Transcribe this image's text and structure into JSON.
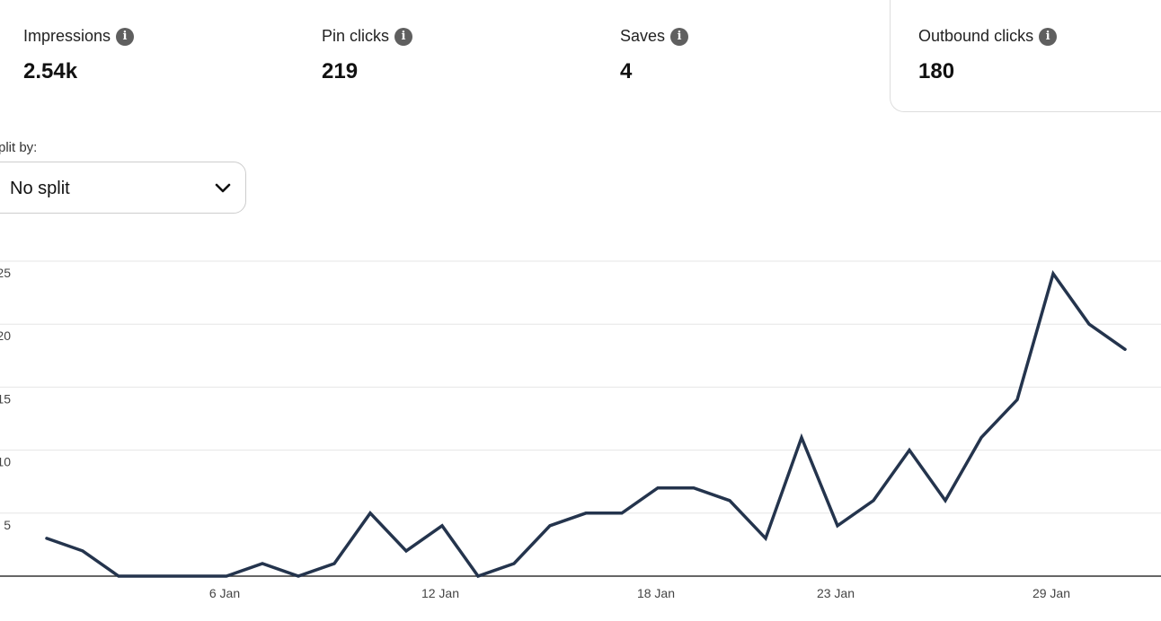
{
  "metrics": [
    {
      "label": "Impressions",
      "value": "2.54k",
      "info_icon": "info-icon"
    },
    {
      "label": "Pin clicks",
      "value": "219",
      "info_icon": "info-icon"
    },
    {
      "label": "Saves",
      "value": "4",
      "info_icon": "info-icon"
    },
    {
      "label": "Outbound clicks",
      "value": "180",
      "info_icon": "info-icon",
      "selected": true
    }
  ],
  "split": {
    "label": "plit by:",
    "selected": "No split",
    "icon": "chevron-down-icon"
  },
  "colors": {
    "line": "#24344d",
    "grid": "#e6e6e6",
    "axis": "#333333",
    "info_icon_bg": "#5f5f5f",
    "card_border": "#dddddd"
  },
  "chart_data": {
    "type": "line",
    "title": "",
    "xlabel": "",
    "ylabel": "",
    "ylim": [
      0,
      25
    ],
    "yticks": [
      0,
      5,
      10,
      15,
      20,
      25
    ],
    "ytick_labels": [
      "",
      "5",
      "10",
      "15",
      "20",
      "25"
    ],
    "xtick_labels": [
      "6 Jan",
      "12 Jan",
      "18 Jan",
      "23 Jan",
      "29 Jan"
    ],
    "grid": true,
    "legend": "none",
    "x": [
      "1 Jan",
      "2 Jan",
      "3 Jan",
      "4 Jan",
      "5 Jan",
      "6 Jan",
      "7 Jan",
      "8 Jan",
      "9 Jan",
      "10 Jan",
      "11 Jan",
      "12 Jan",
      "13 Jan",
      "14 Jan",
      "15 Jan",
      "16 Jan",
      "17 Jan",
      "18 Jan",
      "19 Jan",
      "20 Jan",
      "21 Jan",
      "22 Jan",
      "23 Jan",
      "24 Jan",
      "25 Jan",
      "26 Jan",
      "27 Jan",
      "28 Jan",
      "29 Jan",
      "30 Jan",
      "31 Jan"
    ],
    "series": [
      {
        "values": [
          3,
          2,
          0,
          0,
          0,
          0,
          1,
          0,
          1,
          5,
          2,
          4,
          0,
          1,
          4,
          5,
          5,
          7,
          7,
          6,
          3,
          11,
          4,
          6,
          10,
          6,
          11,
          14,
          24,
          20,
          18
        ]
      }
    ]
  }
}
